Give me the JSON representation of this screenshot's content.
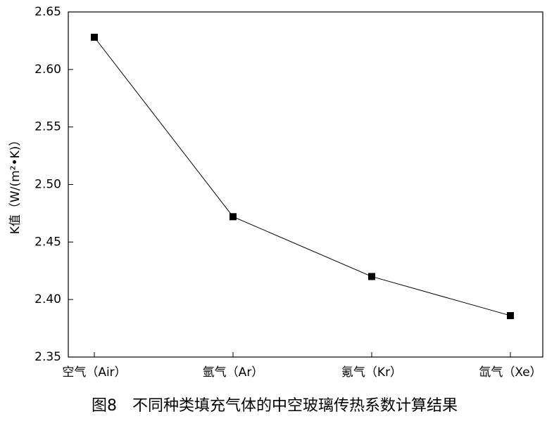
{
  "chart_data": {
    "type": "line",
    "caption": "图8　不同种类填充气体的中空玻璃传热系数计算结果",
    "y_label": "K值（W/(m²•K)）",
    "categories": [
      "空气（Air）",
      "氩气（Ar）",
      "氪气（Kr）",
      "氙气（Xe）"
    ],
    "values": [
      2.628,
      2.472,
      2.42,
      2.386
    ],
    "color": "#000000",
    "marker": "square",
    "ylim": [
      2.35,
      2.65
    ],
    "yticks": [
      2.35,
      {
        "value": 2.4,
        "label": "2.40"
      },
      2.45,
      {
        "value": 2.5,
        "label": "2.50"
      },
      2.55,
      {
        "value": 2.6,
        "label": "2.60"
      },
      2.65
    ],
    "grid": false
  }
}
